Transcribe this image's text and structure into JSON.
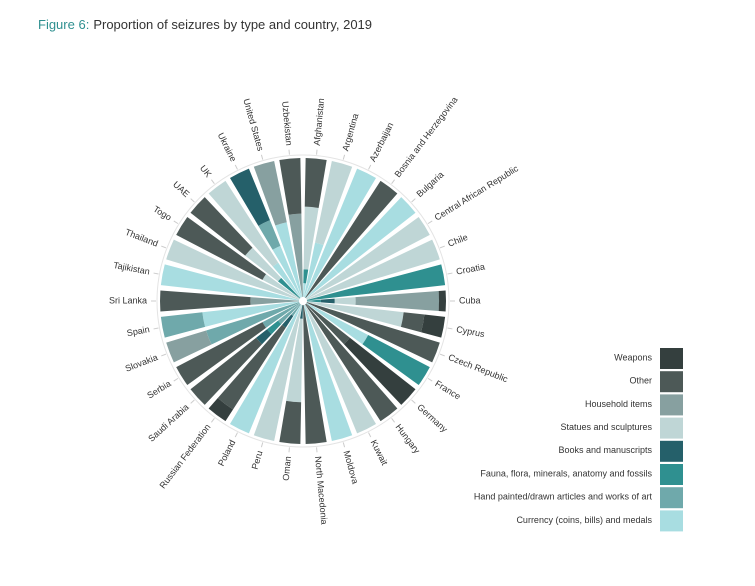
{
  "chart_data": {
    "type": "radial-stacked-bar",
    "title_label": "Figure 6:",
    "title": "Proportion of seizures by type and country, 2019",
    "ylim": [
      0,
      100
    ],
    "categories": [
      "Afghanistan",
      "Argentina",
      "Azerbaijan",
      "Bosnia and Herzegovina",
      "Bulgaria",
      "Central African Republic",
      "Chile",
      "Croatia",
      "Cuba",
      "Cyprus",
      "Czech Republic",
      "France",
      "Germany",
      "Hungary",
      "Kuwait",
      "Moldova",
      "North Macedonia",
      "Oman",
      "Peru",
      "Poland",
      "Russian Federation",
      "Saudi Arabia",
      "Serbia",
      "Slovakia",
      "Spain",
      "Sri Lanka",
      "Tajikistan",
      "Thailand",
      "Togo",
      "UAE",
      "UK",
      "Ukraine",
      "United States",
      "Uzbekistan"
    ],
    "series": [
      {
        "name": "Weapons",
        "color": "#343f3e",
        "values": [
          0,
          0,
          0,
          0,
          0,
          0,
          0,
          0,
          5,
          15,
          0,
          0,
          60,
          0,
          0,
          0,
          0,
          0,
          0,
          0,
          10,
          0,
          0,
          0,
          0,
          0,
          0,
          0,
          0,
          0,
          0,
          0,
          0,
          0
        ]
      },
      {
        "name": "Other",
        "color": "#4d5957",
        "values": [
          35,
          0,
          0,
          100,
          0,
          0,
          0,
          0,
          0,
          15,
          100,
          0,
          40,
          100,
          0,
          0,
          100,
          30,
          0,
          0,
          70,
          60,
          70,
          0,
          0,
          65,
          0,
          0,
          70,
          50,
          0,
          0,
          0,
          40
        ]
      },
      {
        "name": "Household items",
        "color": "#87a0a0",
        "values": [
          0,
          0,
          0,
          0,
          0,
          0,
          0,
          0,
          60,
          0,
          0,
          0,
          0,
          0,
          0,
          0,
          0,
          0,
          0,
          0,
          0,
          0,
          0,
          30,
          0,
          35,
          0,
          0,
          0,
          0,
          0,
          0,
          45,
          60
        ]
      },
      {
        "name": "Statues and sculptures",
        "color": "#bfd6d6",
        "values": [
          45,
          60,
          0,
          0,
          0,
          100,
          100,
          0,
          15,
          70,
          0,
          0,
          0,
          0,
          100,
          0,
          0,
          60,
          100,
          0,
          0,
          0,
          0,
          0,
          0,
          0,
          0,
          100,
          30,
          30,
          70,
          0,
          0,
          0
        ]
      },
      {
        "name": "Books and manuscripts",
        "color": "#25606a",
        "values": [
          0,
          0,
          0,
          0,
          0,
          0,
          0,
          0,
          10,
          0,
          0,
          0,
          0,
          0,
          0,
          0,
          0,
          10,
          0,
          0,
          10,
          10,
          0,
          0,
          0,
          0,
          0,
          0,
          0,
          0,
          0,
          40,
          0,
          0
        ]
      },
      {
        "name": "Fauna, flora, minerals, anatomy and fossils",
        "color": "#2f9090",
        "values": [
          10,
          0,
          0,
          0,
          0,
          0,
          0,
          100,
          10,
          0,
          0,
          50,
          0,
          0,
          0,
          0,
          0,
          0,
          0,
          0,
          0,
          10,
          0,
          0,
          0,
          0,
          0,
          0,
          0,
          20,
          0,
          0,
          0,
          0
        ]
      },
      {
        "name": "Hand painted/drawn articles and works of art",
        "color": "#6fa9ab",
        "values": [
          0,
          0,
          0,
          0,
          0,
          0,
          0,
          0,
          0,
          0,
          0,
          0,
          0,
          0,
          0,
          0,
          0,
          0,
          0,
          0,
          10,
          20,
          30,
          70,
          30,
          0,
          0,
          0,
          0,
          0,
          0,
          20,
          0,
          0
        ]
      },
      {
        "name": "Currency (coins, bills) and medals",
        "color": "#a8dde1",
        "values": [
          10,
          40,
          100,
          0,
          100,
          0,
          0,
          0,
          0,
          0,
          0,
          50,
          0,
          0,
          0,
          100,
          0,
          0,
          0,
          100,
          0,
          0,
          0,
          0,
          70,
          0,
          100,
          0,
          0,
          0,
          30,
          40,
          55,
          0
        ]
      }
    ]
  }
}
